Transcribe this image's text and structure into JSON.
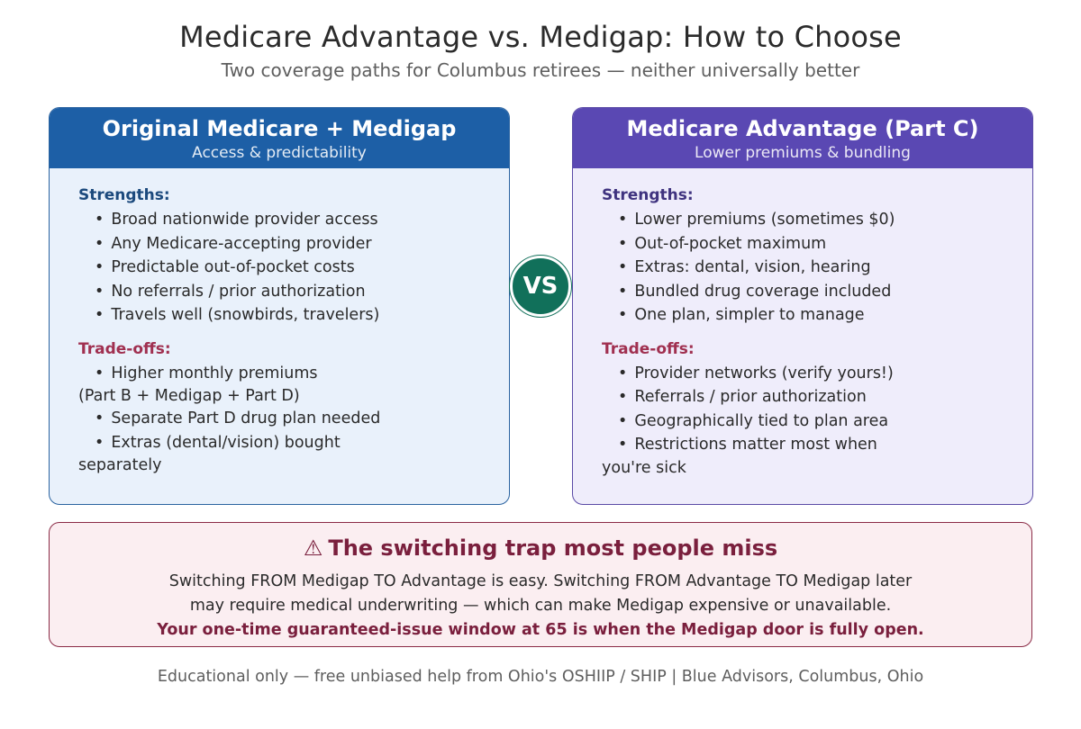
{
  "title": "Medicare Advantage vs. Medigap: How to Choose",
  "subtitle": "Two coverage paths for Columbus retirees — neither universally better",
  "left": {
    "title": "Original Medicare + Medigap",
    "subtitle": "Access & predictability",
    "strengths_label": "Strengths:",
    "strengths": [
      "Broad nationwide provider access",
      "Any Medicare-accepting provider",
      "Predictable out-of-pocket costs",
      "No referrals / prior authorization",
      "Travels well (snowbirds, travelers)"
    ],
    "tradeoffs_label": "Trade-offs:",
    "tradeoffs": [
      {
        "text": "Higher monthly premiums",
        "cont": "(Part B + Medigap + Part D)"
      },
      {
        "text": "Separate Part D drug plan needed",
        "cont": ""
      },
      {
        "text": "Extras (dental/vision) bought",
        "cont": "separately"
      }
    ]
  },
  "vs_label": "VS",
  "right": {
    "title": "Medicare Advantage (Part C)",
    "subtitle": "Lower premiums & bundling",
    "strengths_label": "Strengths:",
    "strengths": [
      "Lower premiums (sometimes $0)",
      "Out-of-pocket maximum",
      "Extras: dental, vision, hearing",
      "Bundled drug coverage included",
      "One plan, simpler to manage"
    ],
    "tradeoffs_label": "Trade-offs:",
    "tradeoffs": [
      {
        "text": "Provider networks (verify yours!)",
        "cont": ""
      },
      {
        "text": "Referrals / prior authorization",
        "cont": ""
      },
      {
        "text": "Geographically tied to plan area",
        "cont": ""
      },
      {
        "text": "Restrictions matter most when",
        "cont": "you're sick"
      }
    ]
  },
  "trap": {
    "icon": "⚠",
    "title": "The switching trap most people miss",
    "line1": "Switching FROM Medigap TO Advantage is easy. Switching FROM Advantage TO Medigap later",
    "line2": "may require medical underwriting — which can make Medigap expensive or unavailable.",
    "emphasis": "Your one-time guaranteed-issue window at 65 is when the Medigap door is fully open."
  },
  "footer": "Educational only — free unbiased help from Ohio's OSHIIP / SHIP | Blue Advisors, Columbus, Ohio",
  "colors": {
    "left_header": "#1d5fa6",
    "right_header": "#5a48b3",
    "vs_circle": "#11705a",
    "tradeoff_label": "#a03050",
    "trap_accent": "#7a1f3d"
  }
}
